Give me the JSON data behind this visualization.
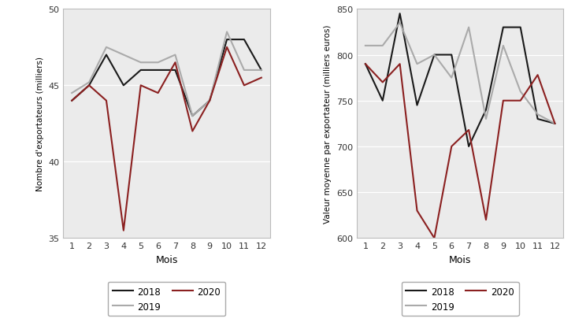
{
  "months": [
    1,
    2,
    3,
    4,
    5,
    6,
    7,
    8,
    9,
    10,
    11,
    12
  ],
  "chart1": {
    "ylabel": "Nombre d'exportateurs (milliers)",
    "xlabel": "Mois",
    "ylim": [
      35,
      50
    ],
    "yticks": [
      35,
      40,
      45,
      50
    ],
    "2018": [
      44,
      45,
      47,
      45,
      46,
      46,
      46,
      43,
      44,
      48,
      48,
      46
    ],
    "2019": [
      44.5,
      45.2,
      47.5,
      47,
      46.5,
      46.5,
      47,
      43,
      44,
      48.5,
      46,
      46
    ],
    "2020": [
      44,
      45,
      44,
      35.5,
      45,
      44.5,
      46.5,
      42,
      44,
      47.5,
      45,
      45.5
    ]
  },
  "chart2": {
    "ylabel": "Valeur moyenne par exportateur (milliers euros)",
    "xlabel": "Mois",
    "ylim": [
      600,
      850
    ],
    "yticks": [
      600,
      650,
      700,
      750,
      800,
      850
    ],
    "2018": [
      790,
      750,
      845,
      745,
      800,
      800,
      700,
      740,
      830,
      830,
      730,
      725
    ],
    "2019": [
      810,
      810,
      835,
      790,
      800,
      775,
      830,
      730,
      810,
      760,
      735,
      725
    ],
    "2020": [
      790,
      770,
      790,
      630,
      600,
      700,
      718,
      620,
      750,
      750,
      778,
      725
    ]
  },
  "color_2018": "#1a1a1a",
  "color_2019": "#aaaaaa",
  "color_2020": "#8b2020",
  "linewidth": 1.5,
  "legend_labels": [
    "2018",
    "2019",
    "2020"
  ],
  "bg_color": "#ebebeb",
  "grid_color": "#ffffff",
  "spine_color": "#bbbbbb"
}
